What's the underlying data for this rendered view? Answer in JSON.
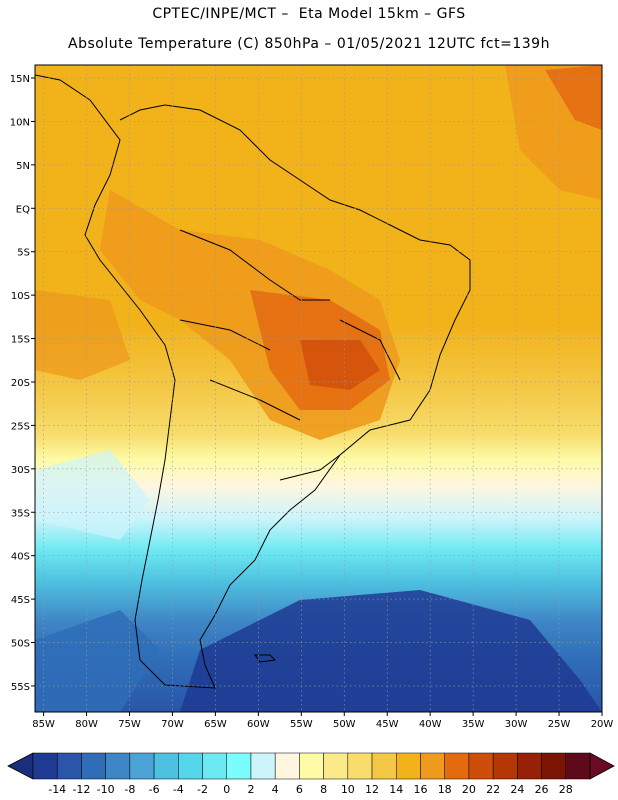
{
  "header": {
    "title_line1": "CPTEC/INPE/MCT –  Eta Model 15km – GFS",
    "title_line2": "Absolute Temperature (C) 850hPa – 01/05/2021 12UTC fct=139h"
  },
  "map": {
    "lon_labels": [
      "85W",
      "80W",
      "75W",
      "70W",
      "65W",
      "60W",
      "55W",
      "50W",
      "45W",
      "40W",
      "35W",
      "30W",
      "25W",
      "20W"
    ],
    "lat_labels": [
      "15N",
      "10N",
      "5N",
      "EQ",
      "5S",
      "10S",
      "15S",
      "20S",
      "25S",
      "30S",
      "35S",
      "40S",
      "45S",
      "50S",
      "55S"
    ],
    "lon_values": [
      -85,
      -80,
      -75,
      -70,
      -65,
      -60,
      -55,
      -50,
      -45,
      -40,
      -35,
      -30,
      -25,
      -20
    ],
    "lat_values": [
      15,
      10,
      5,
      0,
      -5,
      -10,
      -15,
      -20,
      -25,
      -30,
      -35,
      -40,
      -45,
      -50,
      -55
    ],
    "lon_range": [
      -86,
      -20
    ],
    "lat_range": [
      16.5,
      -58
    ]
  },
  "colorbar": {
    "labels": [
      "-14",
      "-12",
      "-10",
      "-8",
      "-6",
      "-4",
      "-2",
      "0",
      "2",
      "4",
      "6",
      "8",
      "10",
      "12",
      "14",
      "16",
      "18",
      "20",
      "22",
      "24",
      "26",
      "28"
    ],
    "colors": [
      "#1f3a93",
      "#2a55a8",
      "#2f6db8",
      "#3f86c6",
      "#4ba3d6",
      "#4ec0e0",
      "#56d6ea",
      "#6de9f2",
      "#7bfdfd",
      "#cdf4fb",
      "#fff6e0",
      "#fdfba6",
      "#fbe98a",
      "#f8dc6c",
      "#f4c846",
      "#f1b21a",
      "#ee9a1c",
      "#e46a10",
      "#cf4d0a",
      "#b43706",
      "#962106",
      "#7a1505",
      "#5e0a1a"
    ]
  }
}
